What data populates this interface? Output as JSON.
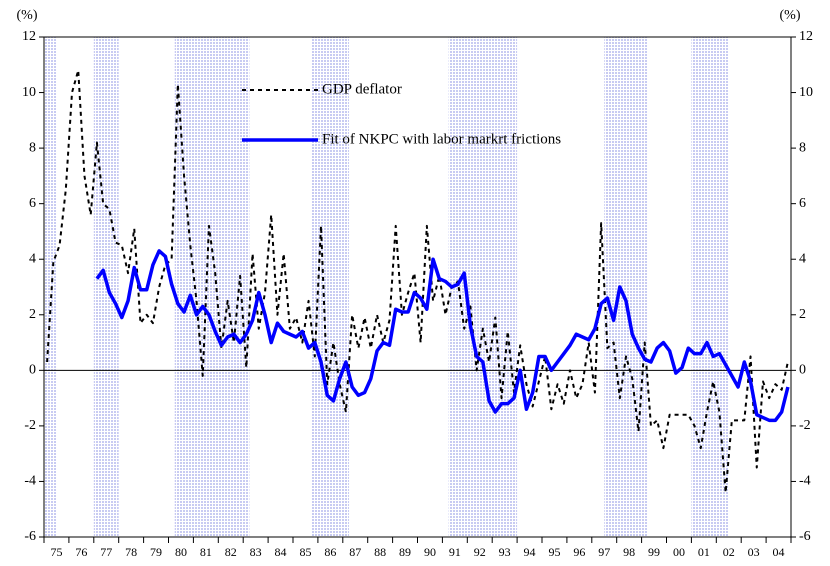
{
  "chart_data": {
    "type": "line",
    "y_unit_label": "(%)",
    "y2_unit_label": "(%)",
    "categories": [
      "75",
      null,
      null,
      null,
      "76",
      null,
      null,
      null,
      "77",
      null,
      null,
      null,
      "78",
      null,
      null,
      null,
      "79",
      null,
      null,
      null,
      "80",
      null,
      null,
      null,
      "81",
      null,
      null,
      null,
      "82",
      null,
      null,
      null,
      "83",
      null,
      null,
      null,
      "84",
      null,
      null,
      null,
      "85",
      null,
      null,
      null,
      "86",
      null,
      null,
      null,
      "87",
      null,
      null,
      null,
      "88",
      null,
      null,
      null,
      "89",
      null,
      null,
      null,
      "90",
      null,
      null,
      null,
      "91",
      null,
      null,
      null,
      "92",
      null,
      null,
      null,
      "93",
      null,
      null,
      null,
      "94",
      null,
      null,
      null,
      "95",
      null,
      null,
      null,
      "96",
      null,
      null,
      null,
      "97",
      null,
      null,
      null,
      "98",
      null,
      null,
      null,
      "99",
      null,
      null,
      null,
      "00",
      null,
      null,
      null,
      "01",
      null,
      null,
      null,
      "02",
      null,
      null,
      null,
      "03",
      null,
      null,
      null,
      "04",
      null,
      null,
      null
    ],
    "series": [
      {
        "name": "GDP deflator",
        "color": "#000000",
        "dashed": true,
        "values": [
          0.3,
          3.9,
          4.5,
          6.5,
          10.0,
          10.8,
          7.0,
          5.6,
          8.2,
          6.0,
          5.8,
          4.6,
          4.5,
          3.5,
          5.1,
          1.7,
          2.0,
          1.7,
          3.0,
          3.8,
          4.0,
          10.3,
          7.0,
          4.5,
          2.5,
          -0.2,
          5.2,
          3.5,
          0.8,
          2.5,
          1.0,
          3.4,
          0.1,
          4.2,
          1.5,
          2.8,
          5.6,
          2.0,
          4.2,
          1.5,
          1.9,
          1.0,
          2.5,
          0.5,
          5.2,
          -0.5,
          1.0,
          -0.5,
          -1.5,
          2.0,
          0.8,
          1.9,
          0.8,
          2.0,
          1.0,
          1.8,
          5.2,
          2.0,
          2.8,
          3.5,
          1.0,
          5.2,
          2.5,
          3.4,
          2.0,
          3.0,
          3.2,
          1.5,
          2.3,
          0.0,
          1.5,
          0.3,
          1.9,
          -1.0,
          1.4,
          -0.8,
          0.9,
          -0.5,
          -1.3,
          -0.4,
          0.5,
          -1.4,
          -0.5,
          -1.2,
          0.0,
          -1.0,
          -0.5,
          1.0,
          -0.8,
          5.3,
          0.8,
          1.0,
          -1.0,
          0.5,
          -0.3,
          -2.2,
          1.0,
          -2.0,
          -1.8,
          -2.8,
          -1.6,
          -1.6,
          -1.6,
          -1.6,
          -2.0,
          -2.8,
          -1.5,
          -0.4,
          -1.5,
          -4.4,
          -1.8,
          -1.8,
          -1.8,
          0.5,
          -3.5,
          -0.4,
          -1.0,
          -0.5,
          -0.7,
          0.3
        ]
      },
      {
        "name": "Fit of NKPC with labor markrt frictions",
        "color": "#0000ff",
        "dashed": false,
        "values": [
          null,
          null,
          null,
          null,
          null,
          null,
          null,
          null,
          3.3,
          3.6,
          2.8,
          2.4,
          1.9,
          2.5,
          3.7,
          2.9,
          2.9,
          3.8,
          4.3,
          4.1,
          3.1,
          2.4,
          2.1,
          2.7,
          2.0,
          2.3,
          2.0,
          1.4,
          0.9,
          1.2,
          1.3,
          1.0,
          1.3,
          1.8,
          2.8,
          2.0,
          1.0,
          1.7,
          1.4,
          1.3,
          1.2,
          1.4,
          0.8,
          1.0,
          0.3,
          -0.9,
          -1.1,
          -0.3,
          0.3,
          -0.6,
          -0.9,
          -0.8,
          -0.3,
          0.7,
          1.0,
          0.9,
          2.2,
          2.1,
          2.1,
          2.8,
          2.6,
          2.2,
          4.0,
          3.3,
          3.2,
          3.0,
          3.1,
          3.5,
          1.6,
          0.5,
          0.3,
          -1.1,
          -1.5,
          -1.2,
          -1.2,
          -1.0,
          0.0,
          -1.4,
          -0.8,
          0.5,
          0.5,
          0.0,
          0.3,
          0.6,
          0.9,
          1.3,
          1.2,
          1.1,
          1.5,
          2.4,
          2.6,
          1.8,
          3.0,
          2.5,
          1.3,
          0.8,
          0.4,
          0.3,
          0.8,
          1.0,
          0.7,
          -0.1,
          0.1,
          0.8,
          0.6,
          0.6,
          1.0,
          0.5,
          0.6,
          0.2,
          -0.2,
          -0.6,
          0.3,
          -0.4,
          -1.6,
          -1.7,
          -1.8,
          -1.8,
          -1.5,
          -0.6
        ]
      }
    ],
    "shaded_ranges": [
      [
        0,
        2
      ],
      [
        8,
        12
      ],
      [
        21,
        33
      ],
      [
        43,
        49
      ],
      [
        65,
        76
      ],
      [
        90,
        97
      ],
      [
        104,
        110
      ]
    ],
    "shade_color": "#d6d8f6",
    "ylim": [
      -6,
      12
    ],
    "yticks": [
      -6,
      -4,
      -2,
      0,
      2,
      4,
      6,
      8,
      10,
      12
    ],
    "y2lim": [
      -6,
      12
    ],
    "y2ticks": [
      -6,
      -4,
      -2,
      0,
      2,
      4,
      6,
      8,
      10,
      12
    ],
    "zero_line": true,
    "legend_position": "top"
  }
}
